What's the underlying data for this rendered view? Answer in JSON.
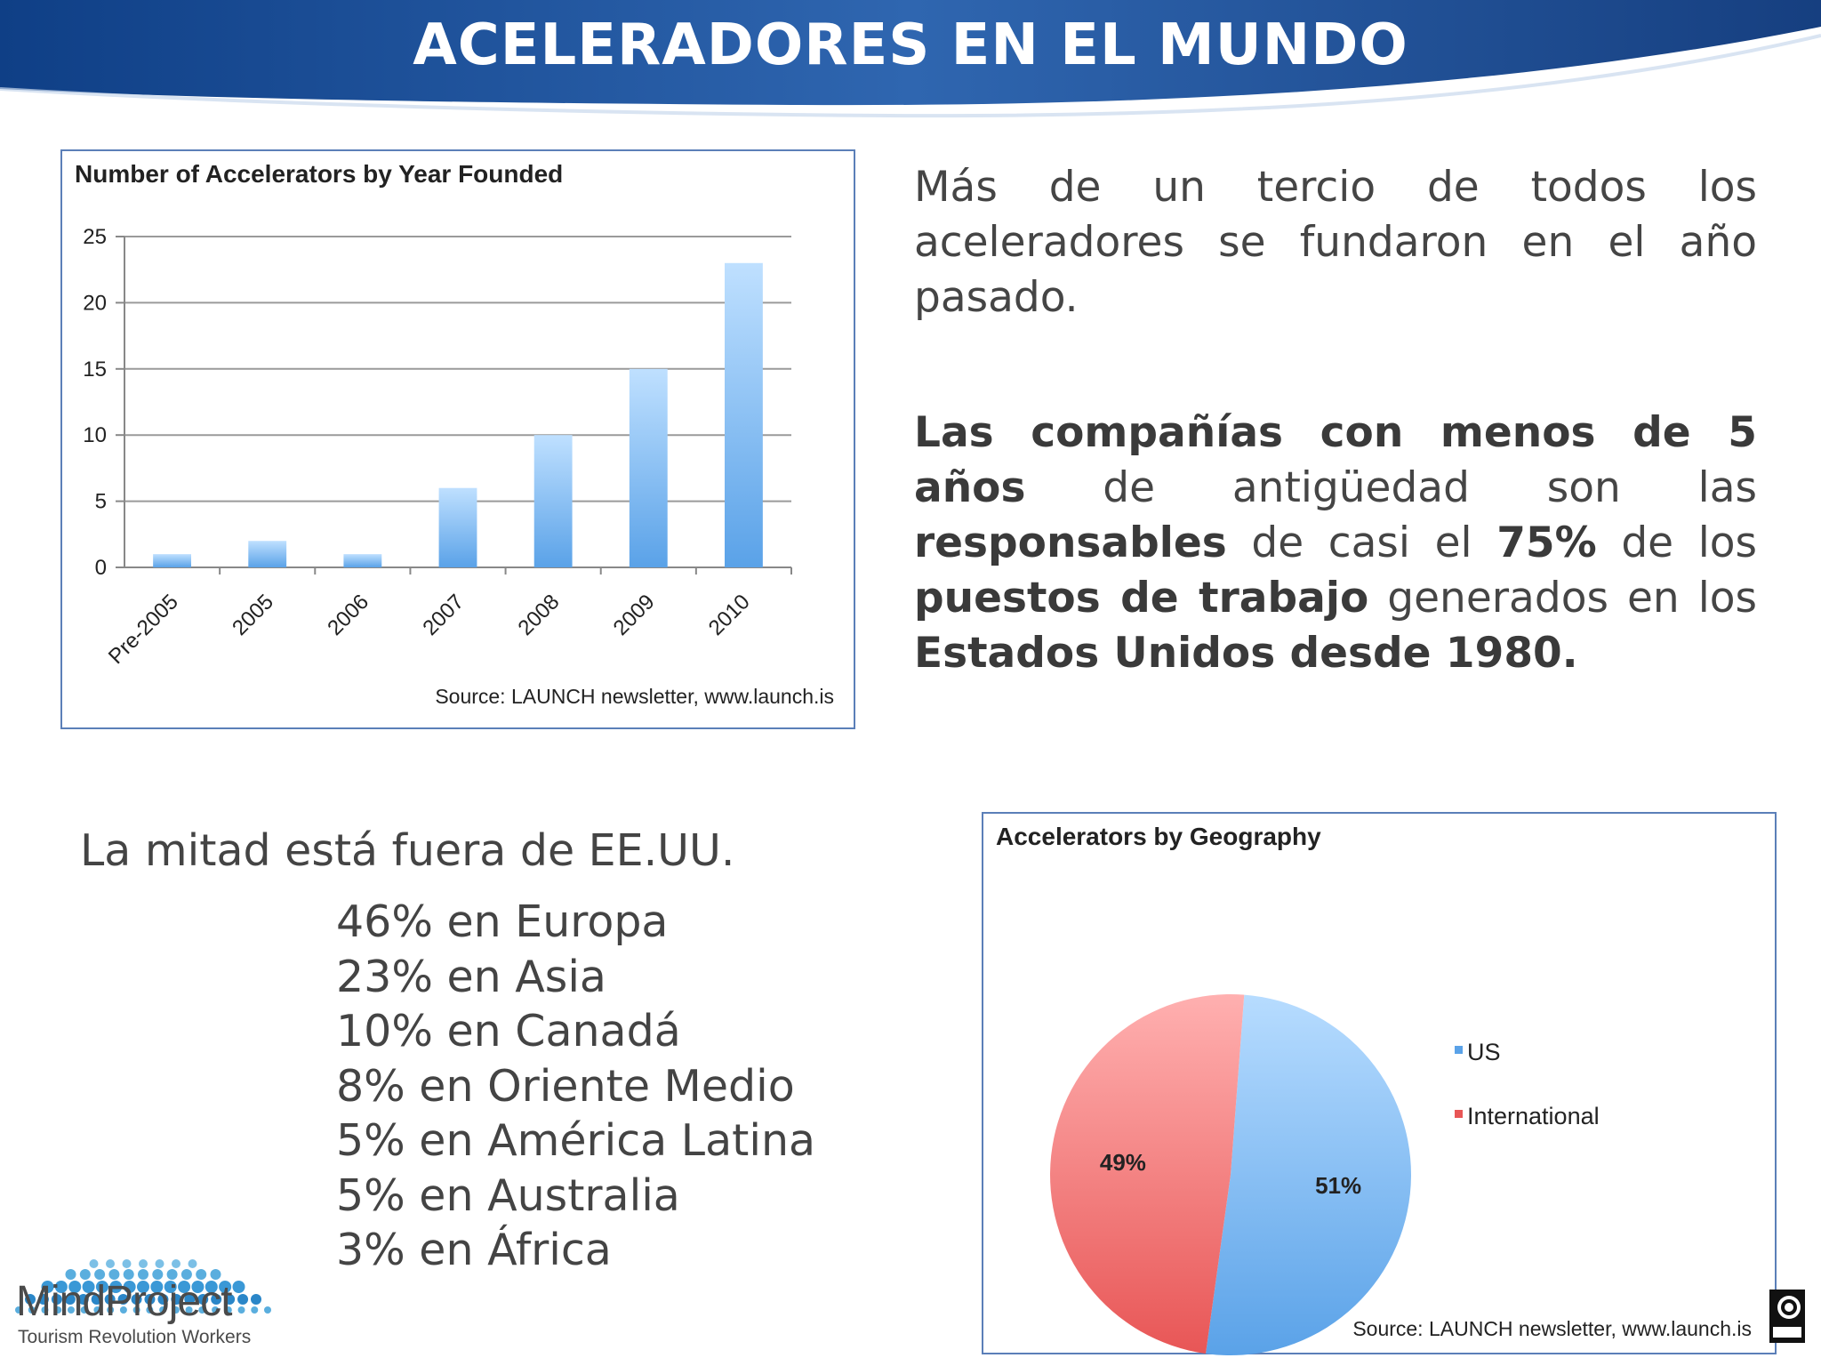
{
  "slide": {
    "title": "ACELERADORES EN EL MUNDO",
    "header_color_dark": "#1f4e92",
    "header_color_light": "#5d8ccb"
  },
  "paragraphs": {
    "p1": "Más de un tercio de todos los aceleradores se fundaron en el año pasado.",
    "p2": {
      "s1": "Las compañías con menos de 5 años",
      "s2": " de antigüedad son las ",
      "s3": "responsables",
      "s4": " de casi el ",
      "s5": "75%",
      "s6": " de los ",
      "s7": "puestos de trabajo",
      "s8": " generados en los ",
      "s9": "Estados Unidos desde 1980."
    }
  },
  "outside_us": "La mitad está fuera de EE.UU.",
  "regions": [
    "46% en Europa",
    "23% en Asia",
    "10% en Canadá",
    "8% en Oriente Medio",
    "5% en América Latina",
    "5% en Australia",
    "3% en África"
  ],
  "logo": {
    "name": "MindProject",
    "tagline": "Tourism Revolution Workers",
    "icon": "wave-dots-logo"
  },
  "cc_icon": "creative-commons-icon",
  "chart_data": [
    {
      "type": "bar",
      "title": "Number of Accelerators by Year Founded",
      "categories": [
        "Pre-2005",
        "2005",
        "2006",
        "2007",
        "2008",
        "2009",
        "2010"
      ],
      "values": [
        1,
        2,
        1,
        6,
        10,
        15,
        23
      ],
      "ylim": [
        0,
        25
      ],
      "yticks": [
        0,
        5,
        10,
        15,
        20,
        25
      ],
      "grid": true,
      "bar_color": "#5aa2e8",
      "source": "Source: LAUNCH newsletter, www.launch.is"
    },
    {
      "type": "pie",
      "title": "Accelerators by Geography",
      "labels": [
        "US",
        "International"
      ],
      "values": [
        51,
        49
      ],
      "data_labels": [
        "51%",
        "49%"
      ],
      "colors": [
        "#5aa2e8",
        "#e85656"
      ],
      "legend": "right",
      "source": "Source: LAUNCH newsletter, www.launch.is"
    }
  ]
}
